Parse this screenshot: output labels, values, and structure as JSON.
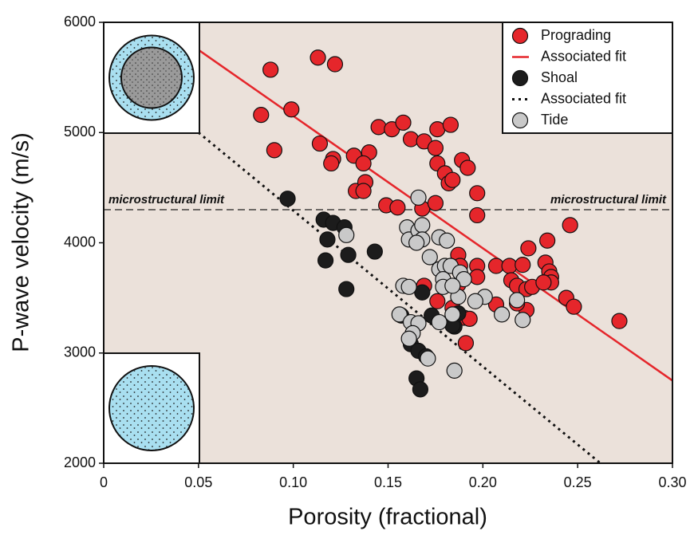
{
  "chart_data": {
    "type": "scatter",
    "x_label": "Porosity (fractional)",
    "y_label": "P-wave velocity (m/s)",
    "xlim": [
      0,
      0.3
    ],
    "ylim": [
      2000,
      6000
    ],
    "xticks": [
      0,
      0.05,
      {
        "value": 0.1,
        "label": "0.10"
      },
      0.15,
      {
        "value": 0.2,
        "label": "0.20"
      },
      0.25,
      {
        "value": 0.3,
        "label": "0.30"
      }
    ],
    "yticks": [
      2000,
      3000,
      4000,
      5000,
      6000
    ],
    "background": "#ebe1da",
    "legend": "upper right",
    "reference_line": {
      "value": 4300,
      "labels": [
        "microstructural limit",
        "microstructural limit"
      ]
    },
    "series": [
      {
        "name": "Prograding",
        "color": "#e5262b",
        "x": [
          0.088,
          0.113,
          0.122,
          0.083,
          0.099,
          0.09,
          0.114,
          0.121,
          0.12,
          0.132,
          0.14,
          0.137,
          0.145,
          0.152,
          0.158,
          0.162,
          0.169,
          0.176,
          0.183,
          0.175,
          0.176,
          0.18,
          0.182,
          0.184,
          0.189,
          0.192,
          0.133,
          0.138,
          0.137,
          0.149,
          0.155,
          0.168,
          0.175,
          0.197,
          0.197,
          0.187,
          0.188,
          0.197,
          0.197,
          0.187,
          0.169,
          0.176,
          0.184,
          0.19,
          0.193,
          0.191,
          0.207,
          0.214,
          0.207,
          0.215,
          0.218,
          0.223,
          0.226,
          0.223,
          0.221,
          0.224,
          0.234,
          0.246,
          0.233,
          0.235,
          0.236,
          0.236,
          0.232,
          0.244,
          0.248,
          0.272,
          0.218
        ],
        "values": [
          5570,
          5680,
          5620,
          5160,
          5210,
          4840,
          4900,
          4760,
          4720,
          4790,
          4820,
          4720,
          5050,
          5030,
          5090,
          4940,
          4920,
          5030,
          5070,
          4860,
          4720,
          4630,
          4540,
          4570,
          4750,
          4680,
          4470,
          4550,
          4470,
          4340,
          4320,
          4310,
          4360,
          4450,
          4250,
          3890,
          3790,
          3790,
          3690,
          3620,
          3610,
          3470,
          3410,
          3320,
          3310,
          3090,
          3790,
          3790,
          3440,
          3660,
          3610,
          3580,
          3600,
          3390,
          3800,
          3950,
          4020,
          4160,
          3820,
          3740,
          3690,
          3640,
          3640,
          3500,
          3420,
          3290,
          3450
        ],
        "fit": {
          "name": "Associated fit",
          "style": "solid",
          "x": [
            0.05,
            0.3
          ],
          "y": [
            5750,
            2750
          ]
        }
      },
      {
        "name": "Shoal",
        "color": "#1c1c1c",
        "x": [
          0.097,
          0.116,
          0.121,
          0.127,
          0.118,
          0.117,
          0.129,
          0.128,
          0.143,
          0.157,
          0.162,
          0.166,
          0.17,
          0.165,
          0.167,
          0.173,
          0.168,
          0.185,
          0.184,
          0.187
        ],
        "values": [
          4400,
          4210,
          4180,
          4140,
          4030,
          3840,
          3890,
          3580,
          3920,
          3340,
          3080,
          3020,
          2970,
          2770,
          2670,
          3340,
          3550,
          3240,
          3250,
          3360
        ],
        "fit": {
          "name": "Associated fit",
          "style": "dotted",
          "x": [
            0.05,
            0.262
          ],
          "y": [
            5000,
            2000
          ]
        }
      },
      {
        "name": "Tide",
        "color": "#c9c9c9",
        "x": [
          0.128,
          0.166,
          0.16,
          0.161,
          0.166,
          0.168,
          0.168,
          0.165,
          0.177,
          0.181,
          0.172,
          0.177,
          0.18,
          0.183,
          0.179,
          0.179,
          0.188,
          0.19,
          0.187,
          0.184,
          0.158,
          0.161,
          0.156,
          0.162,
          0.166,
          0.163,
          0.161,
          0.171,
          0.177,
          0.184,
          0.185,
          0.201,
          0.196,
          0.21,
          0.218,
          0.221
        ],
        "values": [
          4070,
          4410,
          4140,
          4030,
          4110,
          4160,
          4030,
          4000,
          4050,
          4020,
          3870,
          3760,
          3790,
          3790,
          3670,
          3600,
          3730,
          3670,
          3510,
          3610,
          3610,
          3600,
          3350,
          3280,
          3270,
          3180,
          3130,
          2950,
          3280,
          3350,
          2840,
          3510,
          3470,
          3350,
          3480,
          3300
        ]
      }
    ]
  }
}
